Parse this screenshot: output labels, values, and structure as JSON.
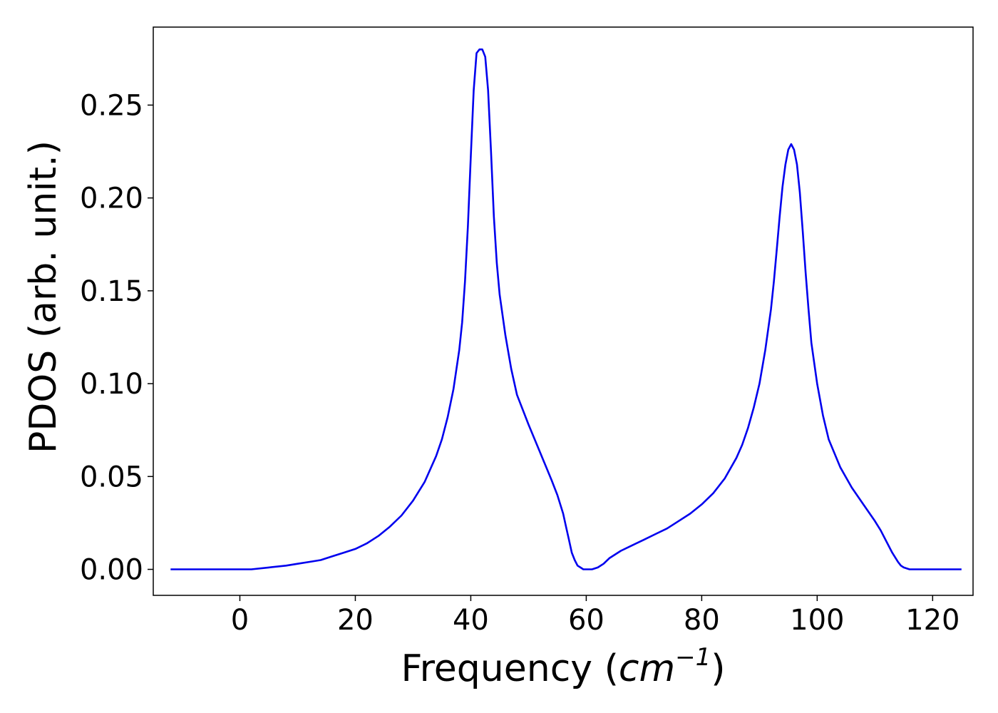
{
  "chart_data": {
    "type": "line",
    "xlabel_main": "Frequency (",
    "xlabel_math": "cm",
    "xlabel_sup": "−1",
    "xlabel_close": ")",
    "ylabel": "PDOS (arb. unit.)",
    "xlim": [
      -15,
      127
    ],
    "ylim": [
      -0.014,
      0.292
    ],
    "xticks": [
      0,
      20,
      40,
      60,
      80,
      100,
      120
    ],
    "xtick_labels": [
      "0",
      "20",
      "40",
      "60",
      "80",
      "100",
      "120"
    ],
    "yticks": [
      0.0,
      0.05,
      0.1,
      0.15,
      0.2,
      0.25
    ],
    "ytick_labels": [
      "0.00",
      "0.05",
      "0.10",
      "0.15",
      "0.20",
      "0.25"
    ],
    "grid": false,
    "line_color": "#0000ee",
    "series": [
      {
        "x": [
          -12,
          -5,
          0,
          2,
          5,
          8,
          10,
          12,
          14,
          16,
          18,
          20,
          22,
          24,
          26,
          28,
          30,
          32,
          34,
          35,
          36,
          37,
          38,
          38.5,
          39,
          39.5,
          40,
          40.5,
          41,
          41.5,
          42,
          42.5,
          43,
          43.5,
          44,
          44.5,
          45,
          46,
          47,
          48,
          50,
          52,
          54,
          55,
          56,
          56.5,
          57,
          57.5,
          58,
          58.5,
          59,
          59.5,
          60,
          61,
          62,
          63,
          64,
          66,
          68,
          70,
          72,
          74,
          76,
          78,
          80,
          82,
          84,
          86,
          87,
          88,
          89,
          90,
          91,
          92,
          92.5,
          93,
          93.5,
          94,
          94.5,
          95,
          95.5,
          96,
          96.5,
          97,
          97.5,
          98,
          98.5,
          99,
          100,
          101,
          102,
          104,
          106,
          108,
          110,
          111,
          112,
          113,
          114,
          114.5,
          115,
          116,
          117,
          120,
          125
        ],
        "y": [
          0.0,
          0.0,
          0.0,
          0.0,
          0.001,
          0.002,
          0.003,
          0.004,
          0.005,
          0.007,
          0.009,
          0.011,
          0.014,
          0.018,
          0.023,
          0.029,
          0.037,
          0.047,
          0.061,
          0.07,
          0.082,
          0.097,
          0.118,
          0.133,
          0.155,
          0.185,
          0.222,
          0.258,
          0.278,
          0.28,
          0.28,
          0.276,
          0.258,
          0.225,
          0.19,
          0.165,
          0.148,
          0.126,
          0.108,
          0.094,
          0.078,
          0.063,
          0.048,
          0.04,
          0.03,
          0.023,
          0.016,
          0.009,
          0.005,
          0.002,
          0.001,
          0.0,
          0.0,
          0.0,
          0.001,
          0.003,
          0.006,
          0.01,
          0.013,
          0.016,
          0.019,
          0.022,
          0.026,
          0.03,
          0.035,
          0.041,
          0.049,
          0.06,
          0.067,
          0.076,
          0.087,
          0.1,
          0.118,
          0.14,
          0.155,
          0.172,
          0.19,
          0.206,
          0.218,
          0.226,
          0.229,
          0.226,
          0.218,
          0.203,
          0.182,
          0.16,
          0.14,
          0.122,
          0.1,
          0.083,
          0.07,
          0.055,
          0.044,
          0.035,
          0.026,
          0.021,
          0.015,
          0.009,
          0.004,
          0.002,
          0.001,
          0.0,
          0.0,
          0.0,
          0.0
        ]
      }
    ]
  }
}
